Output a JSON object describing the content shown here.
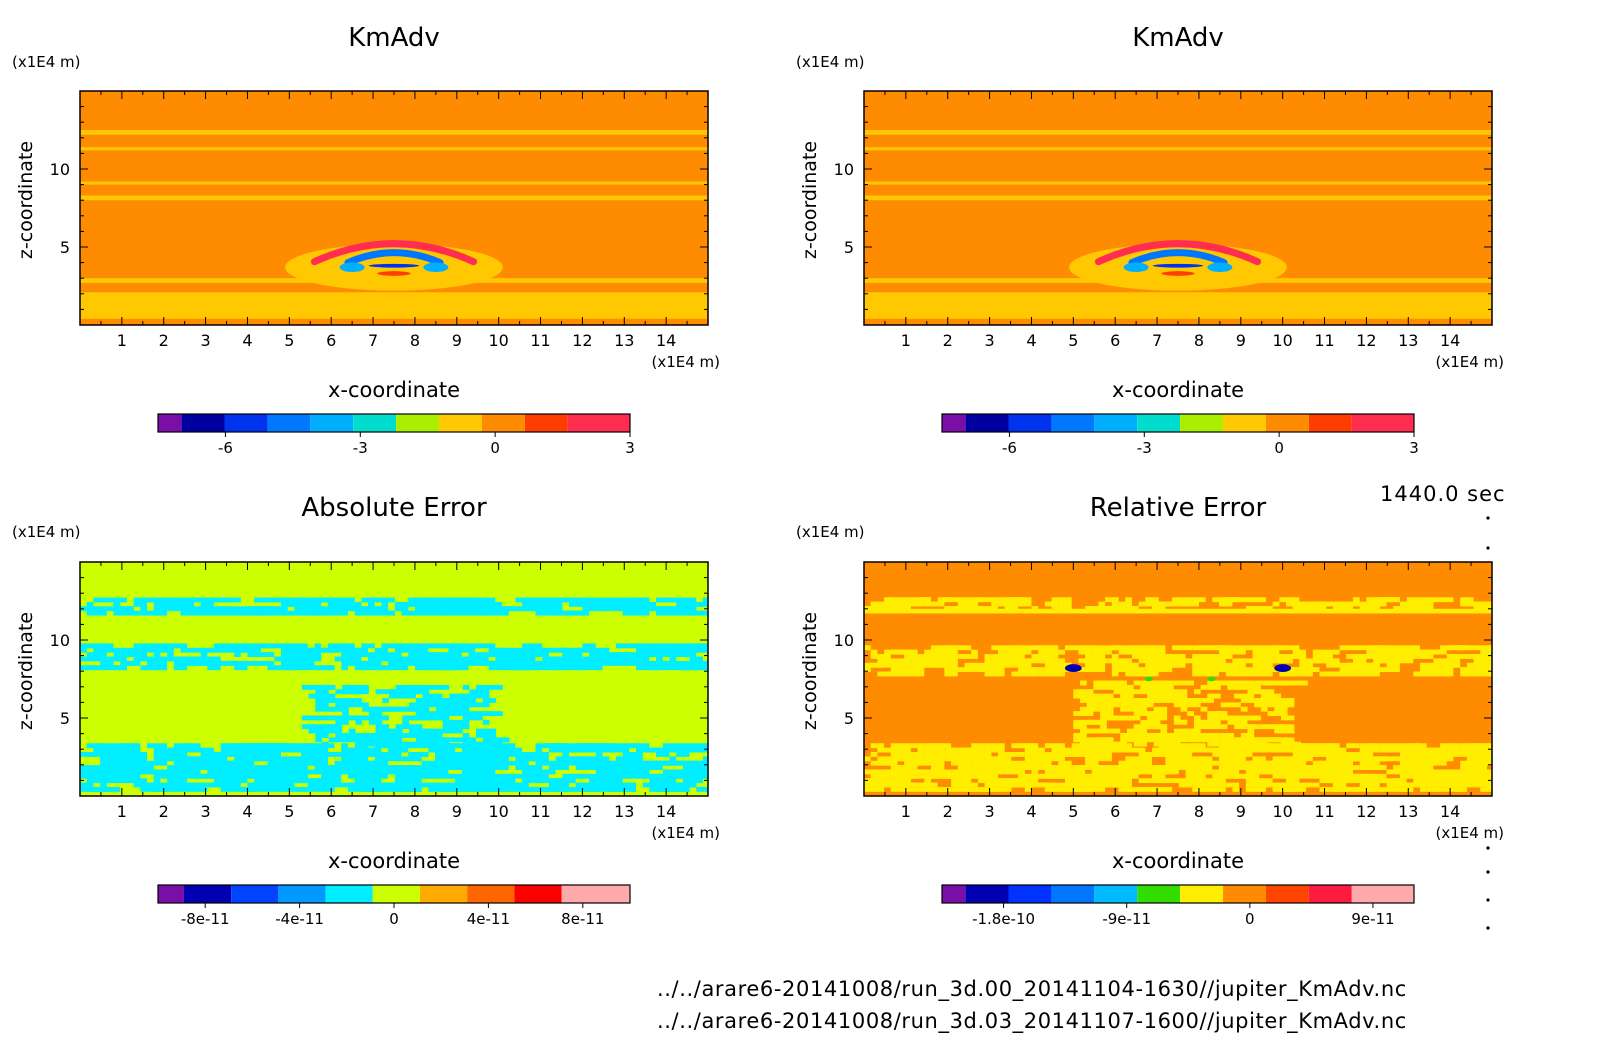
{
  "figure_info": {
    "time_label": "1440.0 sec",
    "files": [
      "../../arare6-20141008/run_3d.00_20141104-1630//jupiter_KmAdv.nc",
      "../../arare6-20141008/run_3d.03_20141107-1600//jupiter_KmAdv.nc"
    ]
  },
  "colors": {
    "kmadv_scale": [
      "#7a0fa8",
      "#0000a0",
      "#0033ee",
      "#0077ff",
      "#00b0ff",
      "#00ddcc",
      "#aaee00",
      "#ffc800",
      "#ff8c00",
      "#ff3d00",
      "#ff2e50"
    ],
    "abs_scale": [
      "#7a0fa8",
      "#0000b0",
      "#0044ff",
      "#0099ff",
      "#00eeff",
      "#ccff00",
      "#ffaa00",
      "#ff6600",
      "#ff0000",
      "#ffaaaa"
    ],
    "rel_scale": [
      "#7a0fa8",
      "#0000b0",
      "#0033ff",
      "#0077ff",
      "#00bbff",
      "#33dd00",
      "#ffee00",
      "#ff8c00",
      "#ff4400",
      "#ff1a40",
      "#ffaaaa"
    ]
  },
  "chart_data": [
    {
      "type": "heatmap",
      "title": "KmAdv",
      "xlabel": "x-coordinate",
      "ylabel": "z-coordinate",
      "xunit": "(x1E4 m)",
      "yunit": "(x1E4 m)",
      "xlim": [
        0,
        15
      ],
      "ylim": [
        0,
        15
      ],
      "xticks": [
        1,
        2,
        3,
        4,
        5,
        6,
        7,
        8,
        9,
        10,
        11,
        12,
        13,
        14
      ],
      "yticks": [
        5,
        10
      ],
      "background_level": 8,
      "colorbar": {
        "min": -7.5,
        "max": 3,
        "levels": 11,
        "tick_values": [
          -6,
          -3,
          0,
          3
        ],
        "tick_labels": [
          "-6",
          "-3",
          "0",
          "3"
        ],
        "scale": "kmadv_scale"
      },
      "features": [
        {
          "kind": "band",
          "y": [
            12.2,
            12.5
          ],
          "level": 7
        },
        {
          "kind": "band",
          "y": [
            11.2,
            11.4
          ],
          "level": 7
        },
        {
          "kind": "band",
          "y": [
            9.0,
            9.2
          ],
          "level": 7
        },
        {
          "kind": "band",
          "y": [
            8.0,
            8.3
          ],
          "level": 7
        },
        {
          "kind": "band",
          "y": [
            2.7,
            3.0
          ],
          "level": 7
        },
        {
          "kind": "band",
          "y": [
            0.4,
            2.1
          ],
          "level": 7
        },
        {
          "kind": "blob",
          "cx": 7.5,
          "cy": 3.7,
          "rx": 2.6,
          "ry": 1.5,
          "level": 7
        },
        {
          "kind": "arc",
          "cx": 7.5,
          "cy": 4.6,
          "rx": 1.9,
          "ry": 0.9,
          "level": 10
        },
        {
          "kind": "arc",
          "cx": 7.5,
          "cy": 4.3,
          "rx": 1.1,
          "ry": 0.5,
          "level": 3
        },
        {
          "kind": "dot",
          "cx": 6.5,
          "cy": 3.7,
          "rx": 0.3,
          "ry": 0.3,
          "level": 4
        },
        {
          "kind": "dot",
          "cx": 8.5,
          "cy": 3.7,
          "rx": 0.3,
          "ry": 0.3,
          "level": 4
        },
        {
          "kind": "dot",
          "cx": 7.5,
          "cy": 3.3,
          "rx": 0.4,
          "ry": 0.15,
          "level": 9
        },
        {
          "kind": "dot",
          "cx": 7.5,
          "cy": 3.8,
          "rx": 0.6,
          "ry": 0.12,
          "level": 2
        }
      ]
    },
    {
      "type": "heatmap",
      "title": "KmAdv",
      "xlabel": "x-coordinate",
      "ylabel": "z-coordinate",
      "xunit": "(x1E4 m)",
      "yunit": "(x1E4 m)",
      "xlim": [
        0,
        15
      ],
      "ylim": [
        0,
        15
      ],
      "xticks": [
        1,
        2,
        3,
        4,
        5,
        6,
        7,
        8,
        9,
        10,
        11,
        12,
        13,
        14
      ],
      "yticks": [
        5,
        10
      ],
      "background_level": 8,
      "colorbar": {
        "min": -7.5,
        "max": 3,
        "levels": 11,
        "tick_values": [
          -6,
          -3,
          0,
          3
        ],
        "tick_labels": [
          "-6",
          "-3",
          "0",
          "3"
        ],
        "scale": "kmadv_scale"
      },
      "features": [
        {
          "kind": "band",
          "y": [
            12.2,
            12.5
          ],
          "level": 7
        },
        {
          "kind": "band",
          "y": [
            11.2,
            11.4
          ],
          "level": 7
        },
        {
          "kind": "band",
          "y": [
            9.0,
            9.2
          ],
          "level": 7
        },
        {
          "kind": "band",
          "y": [
            8.0,
            8.3
          ],
          "level": 7
        },
        {
          "kind": "band",
          "y": [
            2.7,
            3.0
          ],
          "level": 7
        },
        {
          "kind": "band",
          "y": [
            0.4,
            2.1
          ],
          "level": 7
        },
        {
          "kind": "blob",
          "cx": 7.5,
          "cy": 3.7,
          "rx": 2.6,
          "ry": 1.5,
          "level": 7
        },
        {
          "kind": "arc",
          "cx": 7.5,
          "cy": 4.6,
          "rx": 1.9,
          "ry": 0.9,
          "level": 10
        },
        {
          "kind": "arc",
          "cx": 7.5,
          "cy": 4.3,
          "rx": 1.1,
          "ry": 0.5,
          "level": 3
        },
        {
          "kind": "dot",
          "cx": 6.5,
          "cy": 3.7,
          "rx": 0.3,
          "ry": 0.3,
          "level": 4
        },
        {
          "kind": "dot",
          "cx": 8.5,
          "cy": 3.7,
          "rx": 0.3,
          "ry": 0.3,
          "level": 4
        },
        {
          "kind": "dot",
          "cx": 7.5,
          "cy": 3.3,
          "rx": 0.4,
          "ry": 0.15,
          "level": 9
        },
        {
          "kind": "dot",
          "cx": 7.5,
          "cy": 3.8,
          "rx": 0.6,
          "ry": 0.12,
          "level": 2
        }
      ]
    },
    {
      "type": "heatmap",
      "title": "Absolute Error",
      "xlabel": "x-coordinate",
      "ylabel": "z-coordinate",
      "xunit": "(x1E4 m)",
      "yunit": "(x1E4 m)",
      "xlim": [
        0,
        15
      ],
      "ylim": [
        0,
        15
      ],
      "xticks": [
        1,
        2,
        3,
        4,
        5,
        6,
        7,
        8,
        9,
        10,
        11,
        12,
        13,
        14
      ],
      "yticks": [
        5,
        10
      ],
      "background_level": 5,
      "colorbar": {
        "min": -1e-10,
        "max": 1e-10,
        "levels": 10,
        "tick_values": [
          -8e-11,
          -4e-11,
          0,
          4e-11,
          8e-11
        ],
        "tick_labels": [
          "-8e-11",
          "-4e-11",
          "0",
          "4e-11",
          "8e-11"
        ],
        "scale": "abs_scale"
      },
      "features": [
        {
          "kind": "speckle",
          "y": [
            11.6,
            12.6
          ],
          "level": 4,
          "density": 0.55
        },
        {
          "kind": "speckle",
          "y": [
            8.1,
            9.6
          ],
          "level": 4,
          "density": 0.5
        },
        {
          "kind": "speckle",
          "y": [
            0.3,
            3.2
          ],
          "level": 4,
          "density": 0.55
        },
        {
          "kind": "speckle_box",
          "x": [
            5.3,
            9.7
          ],
          "y": [
            3.2,
            7.0
          ],
          "level": 4,
          "density": 0.35
        }
      ]
    },
    {
      "type": "heatmap",
      "title": "Relative Error",
      "xlabel": "x-coordinate",
      "ylabel": "z-coordinate",
      "xunit": "(x1E4 m)",
      "yunit": "(x1E4 m)",
      "xlim": [
        0,
        15
      ],
      "ylim": [
        0,
        15
      ],
      "xticks": [
        1,
        2,
        3,
        4,
        5,
        6,
        7,
        8,
        9,
        10,
        11,
        12,
        13,
        14
      ],
      "yticks": [
        5,
        10
      ],
      "background_level": 7,
      "colorbar": {
        "min": -2.25e-10,
        "max": 1.2e-10,
        "levels": 11,
        "tick_values": [
          -1.8e-10,
          -9e-11,
          0,
          9e-11
        ],
        "tick_labels": [
          "-1.8e-10",
          "-9e-11",
          "0",
          "9e-11"
        ],
        "scale": "rel_scale"
      },
      "features": [
        {
          "kind": "band",
          "y": [
            11.7,
            12.0
          ],
          "level": 6
        },
        {
          "kind": "speckle",
          "y": [
            11.9,
            12.6
          ],
          "level": 6,
          "density": 0.3
        },
        {
          "kind": "speckle",
          "y": [
            7.7,
            9.6
          ],
          "level": 6,
          "density": 0.45
        },
        {
          "kind": "speckle",
          "y": [
            0.3,
            3.2
          ],
          "level": 6,
          "density": 0.55
        },
        {
          "kind": "speckle_box",
          "x": [
            5.0,
            10.0
          ],
          "y": [
            3.2,
            7.2
          ],
          "level": 6,
          "density": 0.35
        },
        {
          "kind": "dot",
          "cx": 5.0,
          "cy": 8.2,
          "rx": 0.2,
          "ry": 0.25,
          "level": 1
        },
        {
          "kind": "dot",
          "cx": 10.0,
          "cy": 8.2,
          "rx": 0.2,
          "ry": 0.25,
          "level": 1
        },
        {
          "kind": "dot",
          "cx": 6.8,
          "cy": 7.5,
          "rx": 0.1,
          "ry": 0.15,
          "level": 5
        },
        {
          "kind": "dot",
          "cx": 8.3,
          "cy": 7.5,
          "rx": 0.1,
          "ry": 0.15,
          "level": 5
        }
      ]
    }
  ]
}
